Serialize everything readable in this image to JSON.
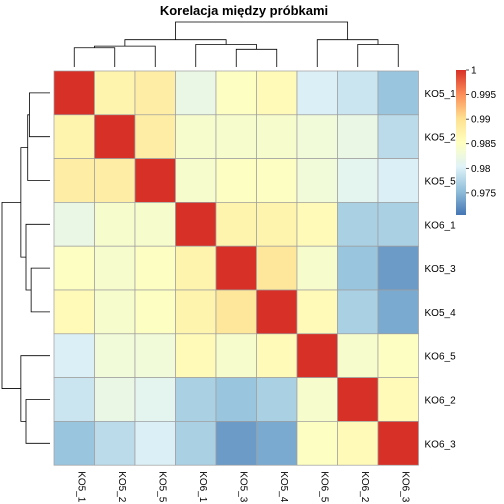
{
  "chart_data": {
    "type": "heatmap",
    "title": "Korelacja między próbkami",
    "row_labels": [
      "KO5_1",
      "KO5_2",
      "KO5_5",
      "KO6_1",
      "KO5_3",
      "KO5_4",
      "KO6_5",
      "KO6_2",
      "KO6_3"
    ],
    "col_labels": [
      "KO5_1",
      "KO5_2",
      "KO5_5",
      "KO6_1",
      "KO5_3",
      "KO5_4",
      "KO6_5",
      "KO6_2",
      "KO6_3"
    ],
    "values": [
      [
        1.0,
        0.987,
        0.988,
        0.982,
        0.985,
        0.986,
        0.98,
        0.979,
        0.976
      ],
      [
        0.987,
        1.0,
        0.988,
        0.984,
        0.984,
        0.984,
        0.983,
        0.982,
        0.978
      ],
      [
        0.988,
        0.988,
        1.0,
        0.984,
        0.985,
        0.985,
        0.983,
        0.981,
        0.98
      ],
      [
        0.982,
        0.984,
        0.984,
        1.0,
        0.987,
        0.987,
        0.986,
        0.977,
        0.977
      ],
      [
        0.985,
        0.984,
        0.985,
        0.987,
        1.0,
        0.989,
        0.984,
        0.976,
        0.973
      ],
      [
        0.986,
        0.984,
        0.985,
        0.987,
        0.989,
        1.0,
        0.986,
        0.977,
        0.974
      ],
      [
        0.98,
        0.983,
        0.983,
        0.986,
        0.984,
        0.986,
        1.0,
        0.984,
        0.985
      ],
      [
        0.979,
        0.982,
        0.981,
        0.977,
        0.976,
        0.977,
        0.984,
        1.0,
        0.986
      ],
      [
        0.976,
        0.978,
        0.98,
        0.977,
        0.973,
        0.974,
        0.985,
        0.986,
        1.0
      ]
    ],
    "color_scale": {
      "min": 0.9705,
      "max": 1.0,
      "stops": [
        "#4575b4",
        "#91bfdb",
        "#e0f3f8",
        "#ffffbf",
        "#fee090",
        "#fc8d59",
        "#d73027"
      ],
      "ticks": [
        0.975,
        0.98,
        0.985,
        0.99,
        0.995,
        1
      ],
      "tick_labels": [
        "0.975",
        "0.98",
        "0.985",
        "0.99",
        "0.995",
        "1"
      ]
    },
    "row_dendrogram": {
      "order_of_leaves": [
        0,
        1,
        2,
        3,
        4,
        5,
        6,
        7,
        8
      ],
      "merges": [
        [
          0,
          1,
          0.012
        ],
        [
          2,
          9,
          0.013
        ],
        [
          4,
          5,
          0.011
        ],
        [
          3,
          11,
          0.014
        ],
        [
          10,
          12,
          0.017
        ],
        [
          7,
          8,
          0.014
        ],
        [
          6,
          14,
          0.017
        ],
        [
          13,
          15,
          0.028
        ]
      ]
    },
    "col_dendrogram": {
      "merges": [
        [
          0,
          1,
          0.012
        ],
        [
          2,
          9,
          0.013
        ],
        [
          4,
          5,
          0.011
        ],
        [
          3,
          11,
          0.014
        ],
        [
          10,
          12,
          0.017
        ],
        [
          7,
          8,
          0.014
        ],
        [
          6,
          14,
          0.017
        ],
        [
          13,
          15,
          0.028
        ]
      ]
    },
    "grid": true,
    "legend_position": "right"
  }
}
